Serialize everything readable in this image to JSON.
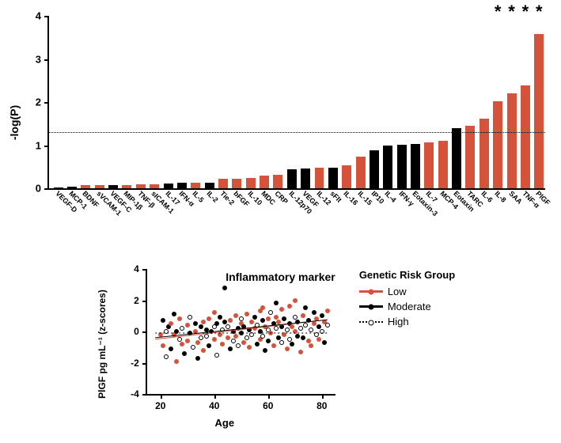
{
  "bar_chart": {
    "type": "bar",
    "y_title": "-log(P)",
    "x_title": "Inflammatory marker",
    "ylim": [
      0,
      4
    ],
    "yticks": [
      0,
      1,
      2,
      3,
      4
    ],
    "threshold": 1.3,
    "colors": {
      "red": "#d5523b",
      "black": "#000000"
    },
    "star_char": "*",
    "bars": [
      {
        "label": "VEGF-D",
        "value": 0.02,
        "color": "black",
        "star": false
      },
      {
        "label": "MCP-1",
        "value": 0.04,
        "color": "black",
        "star": false
      },
      {
        "label": "BDNF",
        "value": 0.07,
        "color": "red",
        "star": false
      },
      {
        "label": "sVCAM-1",
        "value": 0.08,
        "color": "red",
        "star": false
      },
      {
        "label": "VEGF-C",
        "value": 0.08,
        "color": "black",
        "star": false
      },
      {
        "label": "MIP-1β",
        "value": 0.08,
        "color": "red",
        "star": false
      },
      {
        "label": "TNF-β",
        "value": 0.09,
        "color": "red",
        "star": false
      },
      {
        "label": "sICAM-1",
        "value": 0.1,
        "color": "red",
        "star": false
      },
      {
        "label": "IL-17",
        "value": 0.11,
        "color": "black",
        "star": false
      },
      {
        "label": "IFN-α",
        "value": 0.12,
        "color": "black",
        "star": false
      },
      {
        "label": "IL-5",
        "value": 0.12,
        "color": "red",
        "star": false
      },
      {
        "label": "IL-2",
        "value": 0.13,
        "color": "black",
        "star": false
      },
      {
        "label": "Tie-2",
        "value": 0.22,
        "color": "red",
        "star": false
      },
      {
        "label": "bFGF",
        "value": 0.22,
        "color": "red",
        "star": false
      },
      {
        "label": "IL-10",
        "value": 0.24,
        "color": "red",
        "star": false
      },
      {
        "label": "MDC",
        "value": 0.3,
        "color": "red",
        "star": false
      },
      {
        "label": "CRP",
        "value": 0.32,
        "color": "red",
        "star": false
      },
      {
        "label": "IL-12p70",
        "value": 0.44,
        "color": "black",
        "star": false
      },
      {
        "label": "VEGF",
        "value": 0.45,
        "color": "black",
        "star": false
      },
      {
        "label": "IL-12",
        "value": 0.48,
        "color": "red",
        "star": false
      },
      {
        "label": "sFlt",
        "value": 0.48,
        "color": "black",
        "star": false
      },
      {
        "label": "IL-16",
        "value": 0.54,
        "color": "red",
        "star": false
      },
      {
        "label": "IL-15",
        "value": 0.73,
        "color": "red",
        "star": false
      },
      {
        "label": "IP10",
        "value": 0.88,
        "color": "black",
        "star": false
      },
      {
        "label": "IL-4",
        "value": 1.0,
        "color": "black",
        "star": false
      },
      {
        "label": "IFN-γ",
        "value": 1.01,
        "color": "black",
        "star": false
      },
      {
        "label": "Eotaxin-3",
        "value": 1.03,
        "color": "black",
        "star": false
      },
      {
        "label": "IL-7",
        "value": 1.06,
        "color": "red",
        "star": false
      },
      {
        "label": "MCP-4",
        "value": 1.1,
        "color": "red",
        "star": false
      },
      {
        "label": "Eotaxin",
        "value": 1.4,
        "color": "black",
        "star": false
      },
      {
        "label": "TARC",
        "value": 1.45,
        "color": "red",
        "star": false
      },
      {
        "label": "IL-6",
        "value": 1.62,
        "color": "red",
        "star": false
      },
      {
        "label": "IL-8",
        "value": 2.02,
        "color": "red",
        "star": true
      },
      {
        "label": "SAA",
        "value": 2.2,
        "color": "red",
        "star": true
      },
      {
        "label": "TNF-α",
        "value": 2.38,
        "color": "red",
        "star": true
      },
      {
        "label": "PlGF",
        "value": 3.57,
        "color": "red",
        "star": true
      }
    ]
  },
  "scatter_chart": {
    "type": "scatter",
    "x_title": "Age",
    "y_title": "PlGF pg mL⁻¹ (z-scores)",
    "xlim": [
      15,
      85
    ],
    "ylim": [
      -4,
      4
    ],
    "xticks": [
      20,
      40,
      60,
      80
    ],
    "yticks": [
      -4,
      -2,
      0,
      2,
      4
    ],
    "groups": {
      "low": {
        "label": "Low",
        "fill": "#d5523b",
        "stroke": "#d5523b",
        "line_style": "solid"
      },
      "moderate": {
        "label": "Moderate",
        "fill": "#000000",
        "stroke": "#000000",
        "line_style": "solid"
      },
      "high": {
        "label": "High",
        "fill": "none",
        "stroke": "#000000",
        "line_style": "dotted"
      }
    },
    "trends": [
      {
        "group": "low",
        "x1": 18,
        "y1": -0.5,
        "x2": 82,
        "y2": 0.75
      },
      {
        "group": "moderate",
        "x1": 18,
        "y1": -0.4,
        "x2": 82,
        "y2": 0.75
      },
      {
        "group": "high",
        "x1": 18,
        "y1": -0.1,
        "x2": 82,
        "y2": -0.1
      }
    ],
    "points": [
      {
        "x": 20,
        "y": -0.2,
        "g": "low"
      },
      {
        "x": 21,
        "y": 0.7,
        "g": "moderate"
      },
      {
        "x": 21,
        "y": -0.9,
        "g": "low"
      },
      {
        "x": 22,
        "y": 0.0,
        "g": "high"
      },
      {
        "x": 22,
        "y": -1.6,
        "g": "high"
      },
      {
        "x": 23,
        "y": 0.3,
        "g": "moderate"
      },
      {
        "x": 24,
        "y": -1.1,
        "g": "moderate"
      },
      {
        "x": 24,
        "y": 0.5,
        "g": "low"
      },
      {
        "x": 25,
        "y": 1.1,
        "g": "moderate"
      },
      {
        "x": 25,
        "y": -0.2,
        "g": "low"
      },
      {
        "x": 26,
        "y": -1.9,
        "g": "low"
      },
      {
        "x": 26,
        "y": 0.0,
        "g": "moderate"
      },
      {
        "x": 27,
        "y": -0.5,
        "g": "high"
      },
      {
        "x": 27,
        "y": 0.8,
        "g": "low"
      },
      {
        "x": 28,
        "y": -0.8,
        "g": "low"
      },
      {
        "x": 28,
        "y": 0.2,
        "g": "high"
      },
      {
        "x": 29,
        "y": -1.4,
        "g": "moderate"
      },
      {
        "x": 30,
        "y": 0.4,
        "g": "low"
      },
      {
        "x": 30,
        "y": -0.6,
        "g": "low"
      },
      {
        "x": 31,
        "y": -0.1,
        "g": "moderate"
      },
      {
        "x": 31,
        "y": 0.9,
        "g": "high"
      },
      {
        "x": 32,
        "y": -1.0,
        "g": "high"
      },
      {
        "x": 33,
        "y": 0.0,
        "g": "low"
      },
      {
        "x": 33,
        "y": 0.5,
        "g": "moderate"
      },
      {
        "x": 34,
        "y": -0.7,
        "g": "low"
      },
      {
        "x": 34,
        "y": -1.7,
        "g": "moderate"
      },
      {
        "x": 35,
        "y": 0.3,
        "g": "moderate"
      },
      {
        "x": 35,
        "y": -0.4,
        "g": "high"
      },
      {
        "x": 36,
        "y": 0.6,
        "g": "low"
      },
      {
        "x": 36,
        "y": -1.2,
        "g": "low"
      },
      {
        "x": 37,
        "y": 0.1,
        "g": "moderate"
      },
      {
        "x": 37,
        "y": -0.3,
        "g": "high"
      },
      {
        "x": 38,
        "y": 0.8,
        "g": "low"
      },
      {
        "x": 38,
        "y": -0.9,
        "g": "moderate"
      },
      {
        "x": 39,
        "y": 0.0,
        "g": "moderate"
      },
      {
        "x": 40,
        "y": 1.2,
        "g": "low"
      },
      {
        "x": 40,
        "y": -0.5,
        "g": "low"
      },
      {
        "x": 40,
        "y": 0.3,
        "g": "high"
      },
      {
        "x": 41,
        "y": -1.5,
        "g": "high"
      },
      {
        "x": 41,
        "y": 0.5,
        "g": "moderate"
      },
      {
        "x": 42,
        "y": -0.2,
        "g": "low"
      },
      {
        "x": 42,
        "y": 0.9,
        "g": "moderate"
      },
      {
        "x": 43,
        "y": -0.8,
        "g": "low"
      },
      {
        "x": 43,
        "y": 0.1,
        "g": "high"
      },
      {
        "x": 44,
        "y": 0.6,
        "g": "moderate"
      },
      {
        "x": 44,
        "y": 2.8,
        "g": "moderate"
      },
      {
        "x": 45,
        "y": -0.4,
        "g": "low"
      },
      {
        "x": 45,
        "y": 0.3,
        "g": "high"
      },
      {
        "x": 46,
        "y": 0.7,
        "g": "low"
      },
      {
        "x": 46,
        "y": -1.1,
        "g": "moderate"
      },
      {
        "x": 47,
        "y": 0.0,
        "g": "moderate"
      },
      {
        "x": 47,
        "y": -0.6,
        "g": "high"
      },
      {
        "x": 48,
        "y": 1.0,
        "g": "low"
      },
      {
        "x": 48,
        "y": -0.3,
        "g": "low"
      },
      {
        "x": 49,
        "y": 0.2,
        "g": "moderate"
      },
      {
        "x": 49,
        "y": -0.9,
        "g": "high"
      },
      {
        "x": 50,
        "y": 0.5,
        "g": "low"
      },
      {
        "x": 50,
        "y": -0.1,
        "g": "moderate"
      },
      {
        "x": 50,
        "y": 0.8,
        "g": "high"
      },
      {
        "x": 51,
        "y": -0.7,
        "g": "low"
      },
      {
        "x": 51,
        "y": 0.3,
        "g": "moderate"
      },
      {
        "x": 52,
        "y": -0.4,
        "g": "high"
      },
      {
        "x": 52,
        "y": 1.1,
        "g": "low"
      },
      {
        "x": 53,
        "y": 0.1,
        "g": "moderate"
      },
      {
        "x": 53,
        "y": -1.0,
        "g": "low"
      },
      {
        "x": 54,
        "y": 0.6,
        "g": "low"
      },
      {
        "x": 54,
        "y": -0.2,
        "g": "high"
      },
      {
        "x": 55,
        "y": 0.9,
        "g": "moderate"
      },
      {
        "x": 55,
        "y": 0.2,
        "g": "low"
      },
      {
        "x": 56,
        "y": -0.8,
        "g": "moderate"
      },
      {
        "x": 56,
        "y": 0.4,
        "g": "high"
      },
      {
        "x": 57,
        "y": 1.3,
        "g": "low"
      },
      {
        "x": 57,
        "y": -0.5,
        "g": "low"
      },
      {
        "x": 57,
        "y": 0.0,
        "g": "moderate"
      },
      {
        "x": 58,
        "y": 0.7,
        "g": "moderate"
      },
      {
        "x": 58,
        "y": -0.3,
        "g": "high"
      },
      {
        "x": 58,
        "y": 1.5,
        "g": "low"
      },
      {
        "x": 59,
        "y": 0.3,
        "g": "low"
      },
      {
        "x": 59,
        "y": -1.2,
        "g": "moderate"
      },
      {
        "x": 60,
        "y": 0.8,
        "g": "low"
      },
      {
        "x": 60,
        "y": 0.1,
        "g": "high"
      },
      {
        "x": 60,
        "y": -0.6,
        "g": "moderate"
      },
      {
        "x": 61,
        "y": 1.2,
        "g": "high"
      },
      {
        "x": 61,
        "y": -0.1,
        "g": "low"
      },
      {
        "x": 62,
        "y": 0.5,
        "g": "moderate"
      },
      {
        "x": 62,
        "y": -0.9,
        "g": "low"
      },
      {
        "x": 63,
        "y": 0.2,
        "g": "high"
      },
      {
        "x": 63,
        "y": 0.9,
        "g": "low"
      },
      {
        "x": 63,
        "y": 1.8,
        "g": "moderate"
      },
      {
        "x": 64,
        "y": -0.4,
        "g": "moderate"
      },
      {
        "x": 64,
        "y": 0.6,
        "g": "low"
      },
      {
        "x": 65,
        "y": -0.7,
        "g": "high"
      },
      {
        "x": 65,
        "y": 0.3,
        "g": "moderate"
      },
      {
        "x": 65,
        "y": 1.4,
        "g": "low"
      },
      {
        "x": 66,
        "y": -0.2,
        "g": "low"
      },
      {
        "x": 66,
        "y": 0.8,
        "g": "moderate"
      },
      {
        "x": 67,
        "y": 0.1,
        "g": "high"
      },
      {
        "x": 67,
        "y": -1.1,
        "g": "low"
      },
      {
        "x": 68,
        "y": 0.5,
        "g": "moderate"
      },
      {
        "x": 68,
        "y": -0.5,
        "g": "high"
      },
      {
        "x": 68,
        "y": 1.6,
        "g": "low"
      },
      {
        "x": 69,
        "y": 0.3,
        "g": "low"
      },
      {
        "x": 69,
        "y": -0.8,
        "g": "moderate"
      },
      {
        "x": 70,
        "y": 0.9,
        "g": "high"
      },
      {
        "x": 70,
        "y": 0.0,
        "g": "low"
      },
      {
        "x": 70,
        "y": 2.0,
        "g": "low"
      },
      {
        "x": 71,
        "y": -0.3,
        "g": "moderate"
      },
      {
        "x": 71,
        "y": 0.6,
        "g": "moderate"
      },
      {
        "x": 72,
        "y": 0.2,
        "g": "high"
      },
      {
        "x": 72,
        "y": -1.3,
        "g": "low"
      },
      {
        "x": 73,
        "y": 1.0,
        "g": "low"
      },
      {
        "x": 73,
        "y": -0.4,
        "g": "moderate"
      },
      {
        "x": 74,
        "y": 0.4,
        "g": "high"
      },
      {
        "x": 74,
        "y": 1.5,
        "g": "moderate"
      },
      {
        "x": 75,
        "y": -0.6,
        "g": "low"
      },
      {
        "x": 75,
        "y": 0.7,
        "g": "moderate"
      },
      {
        "x": 76,
        "y": 0.1,
        "g": "high"
      },
      {
        "x": 76,
        "y": -0.9,
        "g": "low"
      },
      {
        "x": 77,
        "y": 0.5,
        "g": "low"
      },
      {
        "x": 77,
        "y": 1.2,
        "g": "moderate"
      },
      {
        "x": 78,
        "y": -0.2,
        "g": "high"
      },
      {
        "x": 78,
        "y": 0.8,
        "g": "low"
      },
      {
        "x": 79,
        "y": 0.3,
        "g": "moderate"
      },
      {
        "x": 79,
        "y": -0.5,
        "g": "low"
      },
      {
        "x": 80,
        "y": 1.0,
        "g": "moderate"
      },
      {
        "x": 80,
        "y": 0.0,
        "g": "high"
      },
      {
        "x": 81,
        "y": 0.6,
        "g": "low"
      },
      {
        "x": 81,
        "y": -0.7,
        "g": "moderate"
      },
      {
        "x": 82,
        "y": 0.4,
        "g": "high"
      },
      {
        "x": 82,
        "y": 1.3,
        "g": "low"
      }
    ]
  },
  "legend": {
    "title": "Genetic Risk Group"
  }
}
